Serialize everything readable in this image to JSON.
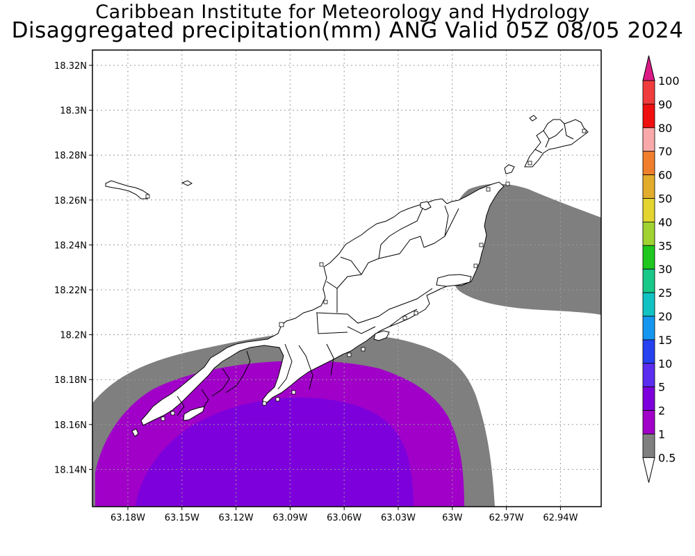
{
  "header": {
    "title": "Caribbean Institute for Meteorology and Hydrology",
    "subtitle": "Disaggregated precipitation(mm) ANG Valid 05Z 08/05 2024"
  },
  "map": {
    "lat_ticks": [
      "18.32N",
      "18.3N",
      "18.28N",
      "18.26N",
      "18.24N",
      "18.22N",
      "18.2N",
      "18.18N",
      "18.16N",
      "18.14N"
    ],
    "lon_ticks": [
      "63.18W",
      "63.15W",
      "63.12W",
      "63.09W",
      "63.06W",
      "63.03W",
      "63W",
      "62.97W",
      "62.94W"
    ],
    "grid": true
  },
  "colorbar": {
    "levels": [
      "100",
      "90",
      "80",
      "70",
      "60",
      "50",
      "40",
      "35",
      "30",
      "25",
      "20",
      "15",
      "10",
      "5",
      "2",
      "1",
      "0.5"
    ],
    "colors": [
      "#f03c3c",
      "#f00f0f",
      "#f9a9a9",
      "#ef7f2d",
      "#e2ac2d",
      "#e3d430",
      "#a0d232",
      "#1fc71f",
      "#18c888",
      "#11c2c2",
      "#1496f0",
      "#2541f0",
      "#5a2df0",
      "#7d00dc",
      "#a000c8",
      "#7f7f7f"
    ],
    "top_color": "#dc1a86"
  }
}
